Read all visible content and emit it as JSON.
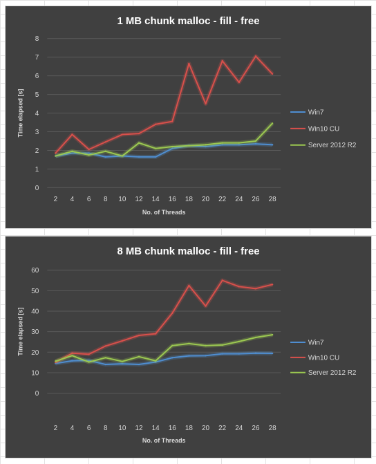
{
  "colors": {
    "background": "#404040",
    "gridline": "#5a5a5a",
    "text": "#d9d9d9",
    "title": "#ffffff"
  },
  "chart_data": [
    {
      "type": "line",
      "title": "1 MB chunk malloc - fill - free",
      "xlabel": "No. of Threads",
      "ylabel": "Time elapsed [s]",
      "x": [
        2,
        4,
        6,
        8,
        10,
        12,
        14,
        16,
        18,
        20,
        22,
        24,
        26,
        28
      ],
      "ylim": [
        0,
        8
      ],
      "yticks": [
        0,
        1,
        2,
        3,
        4,
        5,
        6,
        7,
        8
      ],
      "grid": true,
      "legend_position": "right",
      "series": [
        {
          "name": "Win7",
          "color": "#4f8ed1",
          "values": [
            1.7,
            1.85,
            1.85,
            1.65,
            1.7,
            1.65,
            1.65,
            2.1,
            2.25,
            2.2,
            2.3,
            2.3,
            2.35,
            2.3
          ]
        },
        {
          "name": "Win10 CU",
          "color": "#d9504b",
          "values": [
            1.85,
            2.85,
            2.05,
            2.45,
            2.85,
            2.9,
            3.4,
            3.55,
            6.65,
            4.5,
            6.8,
            5.65,
            7.05,
            6.1
          ]
        },
        {
          "name": "Server 2012 R2",
          "color": "#9cc951",
          "values": [
            1.7,
            1.95,
            1.75,
            1.95,
            1.7,
            2.4,
            2.1,
            2.2,
            2.25,
            2.3,
            2.4,
            2.4,
            2.5,
            3.45
          ]
        }
      ]
    },
    {
      "type": "line",
      "title": "8 MB chunk malloc - fill - free",
      "xlabel": "No. of Threads",
      "ylabel": "Time elapsed [s]",
      "x": [
        2,
        4,
        6,
        8,
        10,
        12,
        14,
        16,
        18,
        20,
        22,
        24,
        26,
        28
      ],
      "ylim": [
        0,
        60
      ],
      "yticks": [
        0,
        10,
        20,
        30,
        40,
        50,
        60
      ],
      "grid": true,
      "legend_position": "right",
      "series": [
        {
          "name": "Win7",
          "color": "#4f8ed1",
          "values": [
            14.5,
            15.8,
            16,
            14,
            14.3,
            14,
            15.2,
            17.3,
            18.2,
            18.3,
            19.2,
            19.2,
            19.5,
            19.4
          ]
        },
        {
          "name": "Win10 CU",
          "color": "#d9504b",
          "values": [
            15,
            19.5,
            19,
            23,
            25.5,
            28.2,
            29,
            39,
            52.5,
            42.5,
            55,
            52,
            51,
            53
          ]
        },
        {
          "name": "Server 2012 R2",
          "color": "#9cc951",
          "values": [
            15.6,
            18.3,
            15.2,
            17.3,
            15.5,
            17.8,
            15.8,
            23.2,
            24.2,
            23.2,
            23.5,
            25.2,
            27.2,
            28.5
          ]
        }
      ]
    }
  ]
}
